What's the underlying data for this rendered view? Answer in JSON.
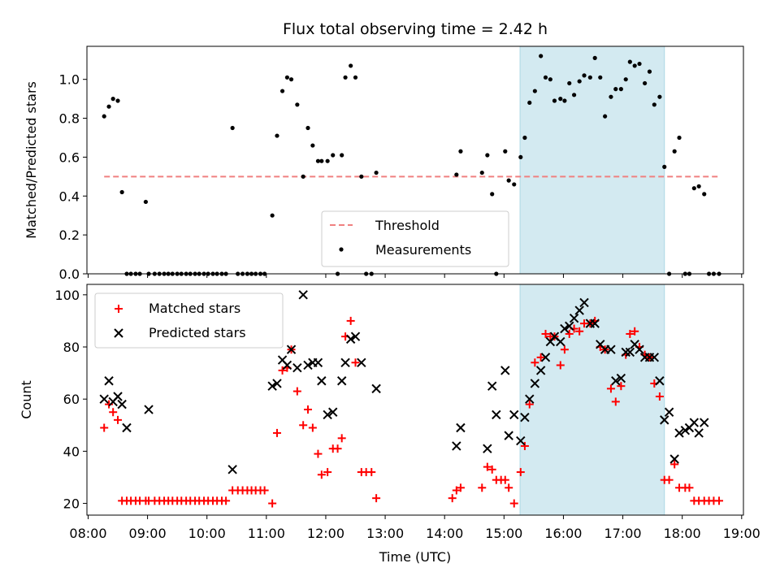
{
  "chart_data": [
    {
      "type": "scatter",
      "title": "Flux total observing time = 2.42 h",
      "xlabel": "",
      "ylabel": "Matched/Predicted stars",
      "ylim": [
        0,
        1.17
      ],
      "xlim": [
        7.98,
        19.03
      ],
      "y_ticks": [
        "0.0",
        "0.2",
        "0.4",
        "0.6",
        "0.8",
        "1.0"
      ],
      "y_tick_values": [
        0,
        0.2,
        0.4,
        0.6,
        0.8,
        1.0
      ],
      "shaded_interval": [
        15.27,
        17.7
      ],
      "shade_color": "#d3eaf1",
      "legend_position": "lower-center",
      "threshold": {
        "name": "Threshold",
        "value": 0.5,
        "x_range": [
          8.27,
          18.62
        ],
        "color": "#f08080",
        "style": "dashed"
      },
      "series": [
        {
          "name": "Measurements",
          "color": "#000000",
          "marker": "dot",
          "x": [
            8.27,
            8.35,
            8.42,
            8.5,
            8.57,
            8.65,
            8.72,
            8.8,
            8.87,
            8.97,
            9.02,
            9.12,
            9.2,
            9.28,
            9.35,
            9.42,
            9.5,
            9.57,
            9.65,
            9.72,
            9.8,
            9.87,
            9.95,
            10.02,
            10.1,
            10.17,
            10.25,
            10.32,
            10.43,
            10.52,
            10.6,
            10.68,
            10.75,
            10.82,
            10.9,
            10.97,
            11.1,
            11.18,
            11.27,
            11.35,
            11.42,
            11.52,
            11.62,
            11.7,
            11.78,
            11.87,
            11.93,
            12.03,
            12.12,
            12.2,
            12.27,
            12.33,
            12.42,
            12.5,
            12.6,
            12.68,
            12.77,
            12.85,
            14.2,
            14.27,
            14.63,
            14.72,
            14.8,
            14.87,
            15.02,
            15.08,
            15.17,
            15.28,
            15.35,
            15.43,
            15.52,
            15.62,
            15.7,
            15.78,
            15.85,
            15.95,
            16.02,
            16.1,
            16.18,
            16.27,
            16.35,
            16.45,
            16.53,
            16.62,
            16.7,
            16.8,
            16.88,
            16.97,
            17.05,
            17.12,
            17.2,
            17.28,
            17.37,
            17.45,
            17.53,
            17.62,
            17.7,
            17.78,
            17.87,
            17.95,
            18.05,
            18.12,
            18.2,
            18.28,
            18.37,
            18.45,
            18.53,
            18.62
          ],
          "y": [
            0.81,
            0.86,
            0.9,
            0.89,
            0.42,
            0,
            0,
            0,
            0,
            0.37,
            0,
            0,
            0,
            0,
            0,
            0,
            0,
            0,
            0,
            0,
            0,
            0,
            0,
            0,
            0,
            0,
            0,
            0,
            0.75,
            0,
            0,
            0,
            0,
            0,
            0,
            0,
            0.3,
            0.71,
            0.94,
            1.01,
            1.0,
            0.87,
            0.5,
            0.75,
            0.66,
            0.58,
            0.58,
            0.58,
            0.61,
            0,
            0.61,
            1.01,
            1.07,
            1.01,
            0.5,
            0,
            0,
            0.52,
            0.51,
            0.63,
            0.52,
            0.61,
            0.41,
            0,
            0.63,
            0.48,
            0.46,
            0.6,
            0.7,
            0.88,
            0.94,
            1.12,
            1.01,
            1.0,
            0.89,
            0.9,
            0.89,
            0.98,
            0.92,
            0.99,
            1.02,
            1.01,
            1.11,
            1.01,
            0.81,
            0.91,
            0.95,
            0.95,
            1.0,
            1.09,
            1.07,
            1.08,
            0.98,
            1.04,
            0.87,
            0.91,
            0.55,
            0,
            0.63,
            0.7,
            0,
            0,
            0.44,
            0.45,
            0.41,
            0,
            0,
            0
          ]
        }
      ]
    },
    {
      "type": "scatter",
      "xlabel": "Time (UTC)",
      "ylabel": "Count",
      "ylim": [
        15.5,
        104
      ],
      "xlim": [
        7.98,
        19.03
      ],
      "y_ticks": [
        "20",
        "40",
        "60",
        "80",
        "100"
      ],
      "y_tick_values": [
        20,
        40,
        60,
        80,
        100
      ],
      "x_ticks": [
        "08:00",
        "09:00",
        "10:00",
        "11:00",
        "12:00",
        "13:00",
        "14:00",
        "15:00",
        "16:00",
        "17:00",
        "18:00",
        "19:00"
      ],
      "x_tick_values": [
        8,
        9,
        10,
        11,
        12,
        13,
        14,
        15,
        16,
        17,
        18,
        19
      ],
      "shaded_interval": [
        15.27,
        17.7
      ],
      "shade_color": "#d3eaf1",
      "legend_position": "upper-left",
      "series": [
        {
          "name": "Matched stars",
          "color": "#ff0000",
          "marker": "plus",
          "x": [
            8.27,
            8.35,
            8.42,
            8.5,
            8.57,
            8.65,
            8.72,
            8.8,
            8.87,
            8.97,
            9.02,
            9.12,
            9.2,
            9.28,
            9.35,
            9.42,
            9.5,
            9.57,
            9.65,
            9.72,
            9.8,
            9.87,
            9.95,
            10.02,
            10.1,
            10.17,
            10.25,
            10.32,
            10.43,
            10.52,
            10.6,
            10.68,
            10.75,
            10.82,
            10.9,
            10.97,
            11.1,
            11.18,
            11.27,
            11.35,
            11.42,
            11.52,
            11.62,
            11.7,
            11.78,
            11.87,
            11.93,
            12.03,
            12.12,
            12.2,
            12.27,
            12.33,
            12.42,
            12.5,
            12.6,
            12.68,
            12.77,
            12.85,
            14.13,
            14.2,
            14.27,
            14.63,
            14.72,
            14.8,
            14.87,
            14.95,
            15.02,
            15.08,
            15.17,
            15.28,
            15.35,
            15.43,
            15.52,
            15.62,
            15.7,
            15.78,
            15.85,
            15.95,
            16.02,
            16.1,
            16.18,
            16.27,
            16.35,
            16.45,
            16.53,
            16.62,
            16.7,
            16.8,
            16.88,
            16.97,
            17.05,
            17.12,
            17.2,
            17.28,
            17.37,
            17.45,
            17.53,
            17.62,
            17.7,
            17.78,
            17.87,
            17.95,
            18.05,
            18.12,
            18.2,
            18.28,
            18.37,
            18.45,
            18.53,
            18.62
          ],
          "y": [
            49,
            58,
            55,
            52,
            21,
            21,
            21,
            21,
            21,
            21,
            21,
            21,
            21,
            21,
            21,
            21,
            21,
            21,
            21,
            21,
            21,
            21,
            21,
            21,
            21,
            21,
            21,
            21,
            25,
            25,
            25,
            25,
            25,
            25,
            25,
            25,
            20,
            47,
            71,
            72,
            79,
            63,
            50,
            56,
            49,
            39,
            31,
            32,
            41,
            41,
            45,
            84,
            90,
            74,
            32,
            32,
            32,
            22,
            22,
            25,
            26,
            26,
            34,
            33,
            29,
            29,
            29,
            26,
            20,
            32,
            42,
            58,
            74,
            76,
            85,
            84,
            84,
            73,
            79,
            85,
            87,
            86,
            89,
            89,
            90,
            80,
            79,
            64,
            59,
            65,
            77,
            85,
            86,
            80,
            77,
            76,
            66,
            61,
            29,
            29,
            35,
            26,
            26,
            26,
            21,
            21,
            21,
            21,
            21,
            21
          ]
        },
        {
          "name": "Predicted stars",
          "color": "#000000",
          "marker": "x",
          "x": [
            8.27,
            8.35,
            8.42,
            8.5,
            8.57,
            8.65,
            9.02,
            10.43,
            11.1,
            11.18,
            11.27,
            11.35,
            11.42,
            11.52,
            11.62,
            11.7,
            11.78,
            11.87,
            11.93,
            12.03,
            12.12,
            12.27,
            12.33,
            12.42,
            12.5,
            12.6,
            12.85,
            14.2,
            14.27,
            14.72,
            14.8,
            14.87,
            15.02,
            15.08,
            15.17,
            15.28,
            15.35,
            15.43,
            15.52,
            15.62,
            15.7,
            15.78,
            15.85,
            15.95,
            16.02,
            16.1,
            16.18,
            16.27,
            16.35,
            16.45,
            16.53,
            16.62,
            16.7,
            16.8,
            16.88,
            16.97,
            17.05,
            17.12,
            17.2,
            17.28,
            17.37,
            17.45,
            17.53,
            17.62,
            17.7,
            17.78,
            17.87,
            17.95,
            18.05,
            18.12,
            18.2,
            18.28,
            18.37
          ],
          "y": [
            60,
            67,
            59,
            61,
            58,
            49,
            56,
            33,
            65,
            66,
            75,
            73,
            79,
            72,
            100,
            73,
            74,
            74,
            67,
            54,
            55,
            67,
            74,
            83,
            84,
            74,
            64,
            42,
            49,
            41,
            65,
            54,
            71,
            46,
            54,
            44,
            53,
            60,
            66,
            71,
            76,
            82,
            84,
            82,
            87,
            88,
            91,
            94,
            97,
            89,
            89,
            81,
            79,
            79,
            67,
            68,
            78,
            78,
            81,
            79,
            76,
            76,
            76,
            67,
            52,
            55,
            37,
            47,
            48,
            49,
            51,
            47,
            51
          ]
        }
      ]
    }
  ]
}
